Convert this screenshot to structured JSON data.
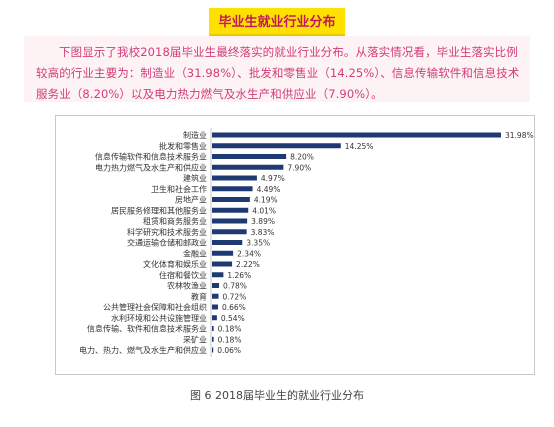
{
  "header": {
    "title": "毕业生就业行业分布"
  },
  "intro": {
    "text": "下图显示了我校2018届毕业生最终落实的就业行业分布。从落实情况看，毕业生落实比例较高的行业主要为：制造业（31.98%）、批发和零售业（14.25%）、信息传输软件和信息技术服务业（8.20%）以及电力热力燃气及水生产和供应业（7.90%）。"
  },
  "caption": "图 6  2018届毕业生的就业行业分布",
  "colors": {
    "bar": "#1f3a73",
    "title_bg": "#ffe100",
    "title_text": "#c2185b",
    "intro_bg": "#fdf3f5",
    "intro_text": "#d23c79"
  },
  "chart_data": {
    "type": "bar",
    "orientation": "horizontal",
    "categories": [
      "制造业",
      "批发和零售业",
      "信息传输软件和信息技术服务业",
      "电力热力燃气及水生产和供应业",
      "建筑业",
      "卫生和社会工作",
      "房地产业",
      "居民服务修理和其他服务业",
      "租赁和商务服务业",
      "科学研究和技术服务业",
      "交通运输仓储和邮政业",
      "金融业",
      "文化体育和娱乐业",
      "住宿和餐饮业",
      "农林牧渔业",
      "教育",
      "公共管理社会保障和社会组织",
      "水利环境和公共设施管理业",
      "信息传输、软件和信息技术服务业",
      "采矿业",
      "电力、热力、燃气及水生产和供应业"
    ],
    "values": [
      31.98,
      14.25,
      8.2,
      7.9,
      4.97,
      4.49,
      4.19,
      4.01,
      3.89,
      3.83,
      3.35,
      2.34,
      2.22,
      1.26,
      0.78,
      0.72,
      0.66,
      0.54,
      0.18,
      0.18,
      0.06
    ],
    "value_labels": [
      "31.98%",
      "14.25%",
      "8.20%",
      "7.90%",
      "4.97%",
      "4.49%",
      "4.19%",
      "4.01%",
      "3.89%",
      "3.83%",
      "3.35%",
      "2.34%",
      "2.22%",
      "1.26%",
      "0.78%",
      "0.72%",
      "0.66%",
      "0.54%",
      "0.18%",
      "0.18%",
      "0.06%"
    ],
    "xlim": [
      0,
      31.98
    ],
    "grid": false,
    "legend": "none"
  }
}
